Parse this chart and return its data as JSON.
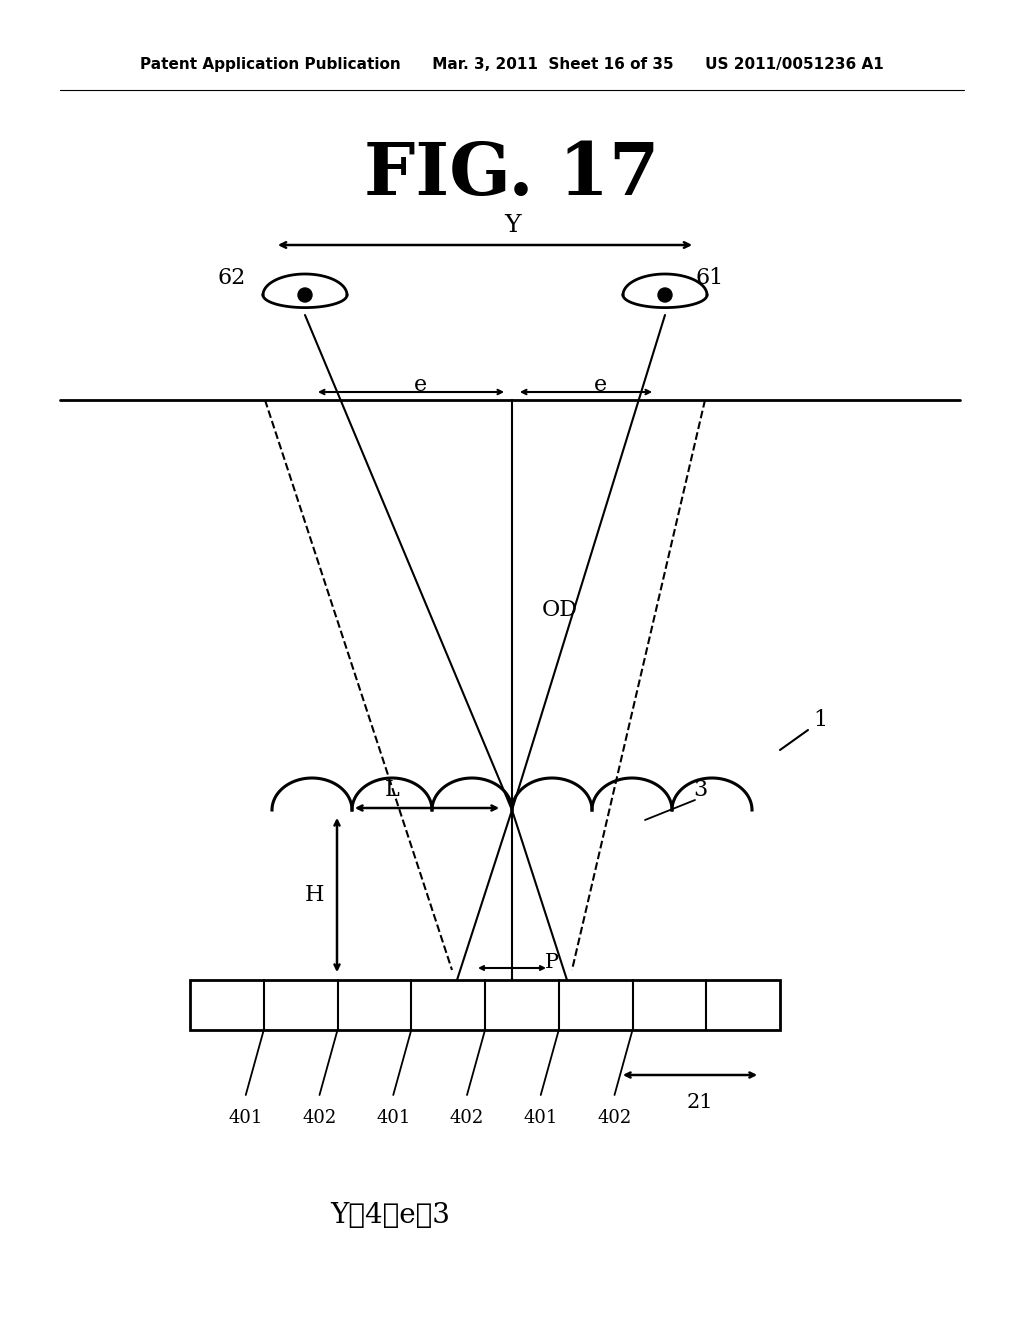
{
  "title": "FIG. 17",
  "header_left": "Patent Application Publication",
  "header_mid": "Mar. 3, 2011  Sheet 16 of 35",
  "header_right": "US 2011/0051236 A1",
  "formula": "Y／4＝e／3",
  "bg_color": "#ffffff",
  "line_color": "#000000",
  "label_Y": "Y",
  "label_e_left": "e",
  "label_e_right": "e",
  "label_OD": "OD",
  "label_L": "L",
  "label_H": "H",
  "label_P": "P",
  "label_3": "3",
  "label_1": "1",
  "label_62": "62",
  "label_61": "61",
  "label_21": "21",
  "label_401a": "401",
  "label_402a": "402",
  "label_401b": "401",
  "label_402b": "402",
  "label_401c": "401",
  "label_402c": "402"
}
